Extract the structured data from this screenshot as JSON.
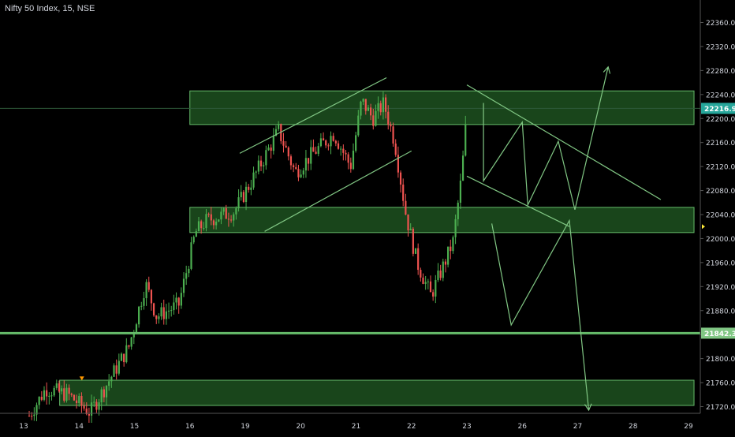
{
  "chart_data": {
    "type": "candlestick",
    "title": "Nifty 50 Index, 15, NSE",
    "symbol": "Nifty 50 Index",
    "interval": "15",
    "exchange": "NSE",
    "ylim": [
      21700,
      22400
    ],
    "y_ticks": [
      "21720.00",
      "21760.00",
      "21800.00",
      "21840.00",
      "21880.00",
      "21920.00",
      "21960.00",
      "22000.00",
      "22040.00",
      "22080.00",
      "22120.00",
      "22160.00",
      "22200.00",
      "22240.00",
      "22280.00",
      "22320.00",
      "22360.00"
    ],
    "x_ticks": [
      "13",
      "14",
      "15",
      "16",
      "19",
      "20",
      "21",
      "22",
      "23",
      "26",
      "27",
      "28",
      "29"
    ],
    "x_tick_pos": [
      0,
      1,
      2,
      3,
      4,
      5,
      6,
      7,
      8,
      9,
      10,
      11,
      12
    ],
    "xlim": [
      0,
      12.1
    ],
    "price_label": "22216.90",
    "level_label": "21842.35",
    "horizontal_level": 21842.35,
    "zones": [
      {
        "x0": 3.0,
        "x1": 12.1,
        "y0": 22190,
        "y1": 22246
      },
      {
        "x0": 3.0,
        "x1": 12.1,
        "y0": 22010,
        "y1": 22052
      },
      {
        "x0": 0.65,
        "x1": 12.1,
        "y0": 21722,
        "y1": 21764
      }
    ],
    "trendlines": [
      [
        [
          3.9,
          22142
        ],
        [
          6.55,
          22268
        ]
      ],
      [
        [
          4.35,
          22012
        ],
        [
          7.0,
          22146
        ]
      ],
      [
        [
          8.0,
          22256
        ],
        [
          11.5,
          22065
        ]
      ],
      [
        [
          8.0,
          22104
        ],
        [
          9.85,
          22020
        ]
      ]
    ],
    "projection_up": [
      [
        8.3,
        22226
      ],
      [
        8.3,
        22096
      ],
      [
        9.0,
        22194
      ],
      [
        9.1,
        22056
      ],
      [
        9.65,
        22162
      ],
      [
        9.95,
        22048
      ],
      [
        10.55,
        22286
      ]
    ],
    "projection_down": [
      [
        8.45,
        22025
      ],
      [
        8.8,
        21856
      ],
      [
        9.85,
        22030
      ],
      [
        10.2,
        21714
      ]
    ],
    "colors": {
      "up": "#26a69a",
      "up_candle": "#4caf50",
      "down": "#ef5350",
      "zone_fill": "#2e7d32",
      "zone_border": "#66bb6a",
      "line": "#81c784",
      "axis_text": "#d1d4dc",
      "background": "#000000"
    }
  }
}
